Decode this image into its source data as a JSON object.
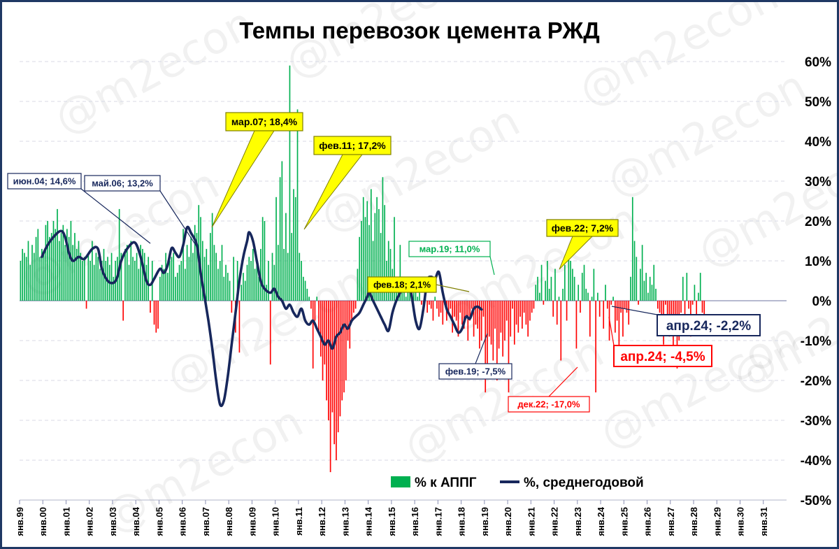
{
  "chart_data": {
    "type": "bar",
    "title": "Темпы перевозок цемента РЖД",
    "watermark": "@m2econ",
    "y_ticks": [
      60,
      50,
      40,
      30,
      20,
      10,
      0,
      -10,
      -20,
      -30,
      -40,
      -50
    ],
    "y_tick_labels": [
      "60%",
      "50%",
      "40%",
      "30%",
      "20%",
      "10%",
      "0%",
      "-10%",
      "-20%",
      "-30%",
      "-40%",
      "-50%"
    ],
    "ylim": [
      -50,
      60
    ],
    "x_tick_labels": [
      "янв.99",
      "янв.00",
      "янв.01",
      "янв.02",
      "янв.03",
      "янв.04",
      "янв.05",
      "янв.06",
      "янв.07",
      "янв.08",
      "янв.09",
      "янв.10",
      "янв.11",
      "янв.12",
      "янв.13",
      "янв.14",
      "янв.15",
      "янв.16",
      "янв.17",
      "янв.18",
      "янв.19",
      "янв.20",
      "янв.21",
      "янв.22",
      "янв.23",
      "янв.24",
      "янв.25",
      "янв.26",
      "янв.27",
      "янв.28",
      "янв.29",
      "янв.30",
      "янв.31"
    ],
    "legend": [
      {
        "name": "% к АППГ",
        "color": "#00b050",
        "kind": "bar"
      },
      {
        "name": "%, среднегодовой",
        "color": "#17275c",
        "kind": "line"
      }
    ],
    "legend_position": "bottom-right",
    "colors": {
      "positive": "#00b050",
      "negative": "#ff0000",
      "line": "#17275c",
      "highlight": "#ffff00"
    },
    "series_yoy": {
      "name": "% к АППГ",
      "start": "янв.99",
      "values": [
        10,
        13,
        12,
        11,
        15,
        9,
        14,
        12,
        16,
        18,
        11,
        13,
        12,
        19,
        20,
        16,
        17,
        20,
        18,
        23,
        15,
        17,
        19,
        14,
        18,
        16,
        20,
        14,
        17,
        13,
        15,
        12,
        10,
        11,
        -2,
        12,
        10,
        15,
        9,
        12,
        11,
        8,
        10,
        13,
        10,
        11,
        9,
        12,
        6,
        10,
        11,
        23,
        12,
        -5,
        13,
        14,
        9,
        15,
        11,
        10,
        12,
        8,
        14,
        13,
        12,
        9,
        11,
        -3,
        10,
        -6,
        -8,
        -7,
        6,
        9,
        8,
        12,
        7,
        10,
        11,
        12,
        6,
        7,
        9,
        10,
        18,
        8,
        14,
        11,
        16,
        12,
        19,
        17,
        24,
        21,
        15,
        11,
        13,
        9,
        17,
        22,
        14,
        12,
        8,
        10,
        14,
        6,
        9,
        7,
        5,
        -3,
        11,
        -8,
        10,
        -13,
        4,
        7,
        5,
        9,
        11,
        10,
        13,
        8,
        9,
        6,
        13,
        21,
        20,
        4,
        10,
        -16,
        12,
        9,
        26,
        14,
        31,
        35,
        13,
        22,
        12,
        59,
        17,
        28,
        26,
        48,
        12,
        10,
        6,
        5,
        3,
        1,
        -2,
        -17,
        -5,
        1,
        -8,
        -14,
        -20,
        -16,
        -25,
        -30,
        -43,
        -28,
        -36,
        -40,
        -33,
        -29,
        -25,
        -23,
        -20,
        -10,
        -12,
        -5,
        -3,
        -2,
        8,
        16,
        20,
        26,
        21,
        25,
        19,
        28,
        15,
        22,
        26,
        23,
        17,
        31,
        24,
        10,
        15,
        13,
        8,
        21,
        5,
        3,
        14,
        2,
        6,
        1,
        3,
        4,
        1,
        2,
        3,
        1,
        2,
        -1,
        -2,
        1,
        -3,
        -1,
        -2,
        -5,
        1,
        -2,
        -4,
        -3,
        -6,
        -1,
        -5,
        -3,
        -2,
        -8,
        -4,
        -5,
        -9,
        -3,
        -6,
        -7,
        -4,
        -10,
        -5,
        -2,
        -9,
        -6,
        -7,
        -12,
        -10,
        -4,
        -23,
        -17,
        -9,
        -11,
        -15,
        -7,
        -20,
        -12,
        -8,
        -14,
        -10,
        -5,
        -23,
        -9,
        -2,
        -11,
        -6,
        -8,
        -4,
        -7,
        -3,
        -6,
        -9,
        -5,
        -3,
        -2,
        4,
        6,
        2,
        9,
        -1,
        5,
        10,
        3,
        6,
        -4,
        8,
        -6,
        1,
        -15,
        3,
        9,
        -5,
        11,
        10,
        8,
        6,
        -12,
        4,
        -3,
        7,
        9,
        3,
        2,
        -9,
        1,
        8,
        -23,
        2,
        -4,
        0,
        -7,
        4,
        -2,
        -10,
        -1,
        1,
        -8,
        -5,
        -14,
        -3,
        -9,
        -2,
        -3,
        -6,
        6,
        26,
        15,
        11,
        -1,
        8,
        14,
        5,
        7,
        2,
        6,
        4,
        9,
        3,
        -2,
        -3,
        -7,
        -11,
        -1,
        -6,
        -9,
        -4,
        -13,
        -8,
        -17,
        -10,
        -3,
        6,
        -5,
        7,
        -2,
        -9,
        -1,
        4,
        -4,
        2,
        7,
        -3,
        -4.5
      ]
    },
    "series_avg": {
      "name": "%, среднегодовой",
      "start": "дек.99",
      "knots": [
        [
          0,
          11
        ],
        [
          3,
          14
        ],
        [
          7,
          16.5
        ],
        [
          10,
          17.5
        ],
        [
          12,
          16
        ],
        [
          14,
          12
        ],
        [
          16,
          10
        ],
        [
          19,
          11
        ],
        [
          22,
          10.5
        ],
        [
          26,
          13
        ],
        [
          29,
          13
        ],
        [
          31,
          8
        ],
        [
          34,
          5
        ],
        [
          37,
          4.5
        ],
        [
          39,
          6
        ],
        [
          41,
          10
        ],
        [
          44,
          13
        ],
        [
          48,
          14.6
        ],
        [
          51,
          11
        ],
        [
          54,
          5
        ],
        [
          56,
          4
        ],
        [
          58,
          5.5
        ],
        [
          61,
          8
        ],
        [
          63,
          7
        ],
        [
          65,
          9
        ],
        [
          67,
          13.2
        ],
        [
          69,
          12
        ],
        [
          71,
          11
        ],
        [
          73,
          14
        ],
        [
          75,
          18.4
        ],
        [
          77,
          17
        ],
        [
          80,
          14
        ],
        [
          82,
          7
        ],
        [
          84,
          1
        ],
        [
          86,
          -5
        ],
        [
          88,
          -12
        ],
        [
          90,
          -20
        ],
        [
          92,
          -26
        ],
        [
          94,
          -25
        ],
        [
          96,
          -19
        ],
        [
          98,
          -11
        ],
        [
          100,
          -3
        ],
        [
          102,
          5
        ],
        [
          104,
          11
        ],
        [
          106,
          15
        ],
        [
          107,
          17.2
        ],
        [
          109,
          15
        ],
        [
          111,
          10
        ],
        [
          113,
          5
        ],
        [
          115,
          3
        ],
        [
          118,
          2
        ],
        [
          120,
          3
        ],
        [
          122,
          1
        ],
        [
          124,
          0
        ],
        [
          126,
          -2
        ],
        [
          128,
          -1
        ],
        [
          130,
          -3
        ],
        [
          132,
          -4
        ],
        [
          134,
          -2
        ],
        [
          136,
          -5
        ],
        [
          138,
          -6
        ],
        [
          140,
          -5
        ],
        [
          142,
          -7
        ],
        [
          144,
          -9
        ],
        [
          146,
          -11
        ],
        [
          148,
          -10
        ],
        [
          150,
          -12
        ],
        [
          152,
          -9
        ],
        [
          154,
          -8
        ],
        [
          156,
          -6
        ],
        [
          158,
          -7
        ],
        [
          160,
          -5
        ],
        [
          162,
          -4
        ],
        [
          164,
          -3
        ],
        [
          166,
          -1
        ],
        [
          168,
          1
        ],
        [
          169,
          2.1
        ],
        [
          171,
          0
        ],
        [
          173,
          -2
        ],
        [
          175,
          -4
        ],
        [
          177,
          -6
        ],
        [
          179,
          -7.5
        ],
        [
          181,
          -3
        ],
        [
          183,
          0
        ],
        [
          185,
          2
        ],
        [
          187,
          4
        ],
        [
          189,
          5.5
        ],
        [
          191,
          1
        ],
        [
          193,
          -5
        ],
        [
          195,
          -7
        ],
        [
          197,
          -2
        ],
        [
          199,
          5
        ],
        [
          201,
          6
        ],
        [
          203,
          5.5
        ],
        [
          205,
          7.2
        ],
        [
          207,
          2
        ],
        [
          209,
          -2
        ],
        [
          211,
          -4
        ],
        [
          213,
          -6
        ],
        [
          215,
          -8
        ],
        [
          217,
          -7
        ],
        [
          219,
          -4
        ],
        [
          221,
          -4.5
        ],
        [
          223,
          -2
        ],
        [
          225,
          -1.5
        ],
        [
          227,
          -2.2
        ]
      ]
    },
    "callouts": [
      {
        "text": "июн.04; 14,6%",
        "style": "navy"
      },
      {
        "text": "май.06; 13,2%",
        "style": "navy"
      },
      {
        "text": "мар.07; 18,4%",
        "style": "yellow"
      },
      {
        "text": "фев.11; 17,2%",
        "style": "yellow"
      },
      {
        "text": "фев.18; 2,1%",
        "style": "yellow"
      },
      {
        "text": "мар.19; 11,0%",
        "style": "green"
      },
      {
        "text": "фев.19; -7,5%",
        "style": "navy"
      },
      {
        "text": "фев.22; 7,2%",
        "style": "yellow"
      },
      {
        "text": "дек.22; -17,0%",
        "style": "red"
      },
      {
        "text": "апр.24; -2,2%",
        "style": "navy-big"
      },
      {
        "text": "апр.24; -4,5%",
        "style": "red-big"
      }
    ]
  }
}
